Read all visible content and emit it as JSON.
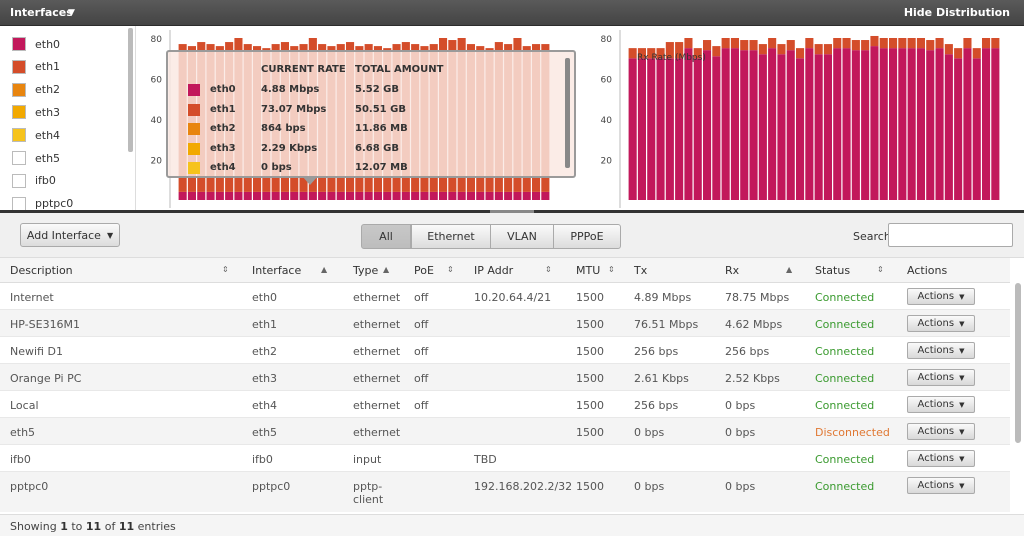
{
  "header": {
    "title": "Interfaces",
    "hide_label": "Hide Distribution"
  },
  "legend": [
    {
      "name": "eth0",
      "color": "#c2185b"
    },
    {
      "name": "eth1",
      "color": "#d44d2a"
    },
    {
      "name": "eth2",
      "color": "#e8850f"
    },
    {
      "name": "eth3",
      "color": "#f2a900"
    },
    {
      "name": "eth4",
      "color": "#f6c31c"
    },
    {
      "name": "eth5",
      "color": "#ffffff"
    },
    {
      "name": "ifb0",
      "color": "#ffffff"
    },
    {
      "name": "pptpc0",
      "color": "#ffffff"
    }
  ],
  "chart_data": [
    {
      "type": "bar",
      "stacked": true,
      "ylim": [
        0,
        80
      ],
      "yticks": [
        "80",
        "60",
        "40",
        "20"
      ],
      "title": "",
      "series": [
        {
          "name": "eth0",
          "values": [
            4,
            4,
            4,
            4,
            4,
            4,
            4,
            4,
            4,
            4,
            4,
            4,
            4,
            4,
            4,
            4,
            4,
            4,
            4,
            4,
            4,
            4,
            4,
            4,
            4,
            4,
            4,
            4,
            4,
            4,
            4,
            4,
            4,
            4,
            4,
            4,
            4,
            4,
            4,
            4
          ]
        },
        {
          "name": "eth1",
          "values": [
            73,
            72,
            74,
            73,
            72,
            74,
            76,
            73,
            72,
            71,
            73,
            74,
            72,
            73,
            76,
            73,
            72,
            73,
            74,
            72,
            73,
            72,
            71,
            73,
            74,
            73,
            72,
            73,
            76,
            75,
            76,
            73,
            72,
            71,
            74,
            73,
            76,
            72,
            73,
            73
          ]
        }
      ]
    },
    {
      "type": "bar",
      "stacked": true,
      "ylim": [
        0,
        80
      ],
      "yticks": [
        "80",
        "60",
        "40",
        "20"
      ],
      "title": "Rx Rate (Mbps)",
      "series": [
        {
          "name": "eth0",
          "values": [
            70,
            70,
            70,
            70,
            70,
            70,
            75,
            70,
            74,
            71,
            75,
            75,
            74,
            74,
            72,
            75,
            72,
            74,
            70,
            75,
            72,
            72,
            75,
            75,
            74,
            74,
            76,
            75,
            75,
            75,
            75,
            75,
            74,
            75,
            72,
            70,
            75,
            70,
            75,
            75
          ]
        },
        {
          "name": "eth1",
          "values": [
            5,
            5,
            5,
            5,
            8,
            8,
            5,
            5,
            5,
            5,
            5,
            5,
            5,
            5,
            5,
            5,
            5,
            5,
            5,
            5,
            5,
            5,
            5,
            5,
            5,
            5,
            5,
            5,
            5,
            5,
            5,
            5,
            5,
            5,
            5,
            5,
            5,
            5,
            5,
            5
          ]
        }
      ]
    }
  ],
  "tooltip": {
    "headers": {
      "rate": "CURRENT RATE",
      "total": "TOTAL AMOUNT"
    },
    "rows": [
      {
        "name": "eth0",
        "rate": "4.88 Mbps",
        "total": "5.52 GB",
        "color": "#c2185b"
      },
      {
        "name": "eth1",
        "rate": "73.07 Mbps",
        "total": "50.51 GB",
        "color": "#d44d2a"
      },
      {
        "name": "eth2",
        "rate": "864 bps",
        "total": "11.86 MB",
        "color": "#e8850f"
      },
      {
        "name": "eth3",
        "rate": "2.29 Kbps",
        "total": "6.68 GB",
        "color": "#f2a900"
      },
      {
        "name": "eth4",
        "rate": "0 bps",
        "total": "12.07 MB",
        "color": "#f6c31c"
      }
    ]
  },
  "toolbar": {
    "add_label": "Add Interface",
    "filters": [
      "All",
      "Ethernet",
      "VLAN",
      "PPPoE"
    ],
    "search_label": "Search",
    "search_value": ""
  },
  "table": {
    "columns": [
      "Description",
      "Interface",
      "Type",
      "PoE",
      "IP Addr",
      "MTU",
      "Tx",
      "Rx",
      "Status",
      "Actions"
    ],
    "rows": [
      {
        "desc": "Internet",
        "iface": "eth0",
        "type": "ethernet",
        "poe": "off",
        "ip": "10.20.64.4/21",
        "mtu": "1500",
        "tx": "4.89 Mbps",
        "rx": "78.75 Mbps",
        "status": "Connected"
      },
      {
        "desc": "HP-SE316M1",
        "iface": "eth1",
        "type": "ethernet",
        "poe": "off",
        "ip": "",
        "mtu": "1500",
        "tx": "76.51 Mbps",
        "rx": "4.62 Mbps",
        "status": "Connected"
      },
      {
        "desc": "Newifi D1",
        "iface": "eth2",
        "type": "ethernet",
        "poe": "off",
        "ip": "",
        "mtu": "1500",
        "tx": "256 bps",
        "rx": "256 bps",
        "status": "Connected"
      },
      {
        "desc": "Orange Pi PC",
        "iface": "eth3",
        "type": "ethernet",
        "poe": "off",
        "ip": "",
        "mtu": "1500",
        "tx": "2.61 Kbps",
        "rx": "2.52 Kbps",
        "status": "Connected"
      },
      {
        "desc": "Local",
        "iface": "eth4",
        "type": "ethernet",
        "poe": "off",
        "ip": "",
        "mtu": "1500",
        "tx": "256 bps",
        "rx": "0 bps",
        "status": "Connected"
      },
      {
        "desc": "eth5",
        "iface": "eth5",
        "type": "ethernet",
        "poe": "",
        "ip": "",
        "mtu": "1500",
        "tx": "0 bps",
        "rx": "0 bps",
        "status": "Disconnected"
      },
      {
        "desc": "ifb0",
        "iface": "ifb0",
        "type": "input",
        "poe": "",
        "ip": "TBD",
        "mtu": "",
        "tx": "",
        "rx": "",
        "status": "Connected"
      },
      {
        "desc": "pptpc0",
        "iface": "pptpc0",
        "type": "pptp-client",
        "poe": "",
        "ip": "192.168.202.2/32",
        "mtu": "1500",
        "tx": "0 bps",
        "rx": "0 bps",
        "status": "Connected"
      }
    ],
    "action_label": "Actions"
  },
  "footer": {
    "prefix": "Showing",
    "from": "1",
    "to_word": "to",
    "to": "11",
    "of_word": "of",
    "total": "11",
    "suffix": "entries"
  },
  "colors": {
    "connected": "#3a9a2f",
    "disconnected": "#e07833"
  }
}
